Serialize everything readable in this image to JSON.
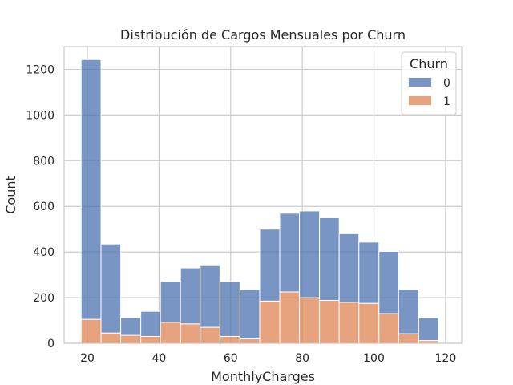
{
  "chart_data": {
    "type": "bar",
    "title": "Distribución de Cargos Mensuales por Churn",
    "xlabel": "MonthlyCharges",
    "ylabel": "Count",
    "xlim": [
      13.5,
      124.5
    ],
    "ylim": [
      0,
      1300
    ],
    "xticks": [
      20,
      40,
      60,
      80,
      100,
      120
    ],
    "yticks": [
      0,
      200,
      400,
      600,
      800,
      1000,
      1200
    ],
    "grid": true,
    "stacked": true,
    "bin_edges": [
      18.25,
      23.8,
      29.3,
      34.9,
      40.4,
      46.0,
      51.5,
      57.0,
      62.6,
      68.1,
      73.7,
      79.2,
      84.8,
      90.3,
      95.8,
      101.4,
      106.9,
      112.5,
      118.0
    ],
    "legend": {
      "title": "Churn",
      "position": "top-right"
    },
    "colors": {
      "0": "#4c72b0",
      "1": "#dd8452"
    },
    "series": [
      {
        "name": "0",
        "values": [
          1138,
          390,
          78,
          110,
          180,
          245,
          270,
          240,
          215,
          315,
          345,
          380,
          362,
          300,
          268,
          272,
          195,
          100
        ]
      },
      {
        "name": "1",
        "values": [
          105,
          45,
          35,
          30,
          92,
          85,
          70,
          30,
          20,
          185,
          225,
          200,
          188,
          180,
          175,
          130,
          42,
          12
        ]
      }
    ]
  }
}
